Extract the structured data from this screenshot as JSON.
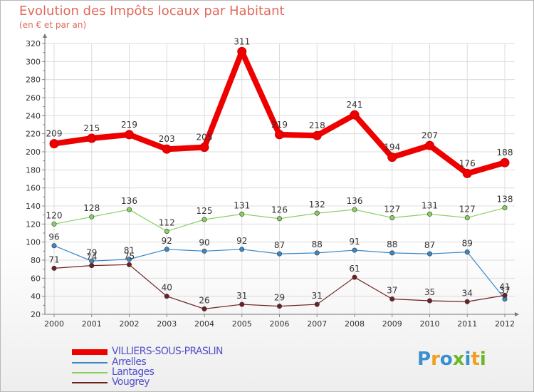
{
  "title": "Evolution des Impôts locaux par Habitant",
  "subtitle": "(en € et par an)",
  "logo": {
    "letters": [
      "P",
      "r",
      "o",
      "x",
      "i",
      "t",
      "i"
    ],
    "colors": [
      "#3a8fd0",
      "#f0a020",
      "#3a8fd0",
      "#6ab82a",
      "#3a8fd0",
      "#f0a020",
      "#6ab82a"
    ]
  },
  "chart_data": {
    "type": "line",
    "title": "Evolution des Impôts locaux par Habitant",
    "ylabel": "(en € et par an)",
    "x": [
      "2000",
      "2001",
      "2002",
      "2003",
      "2004",
      "2005",
      "2006",
      "2007",
      "2008",
      "2009",
      "2010",
      "2011",
      "2012"
    ],
    "ylim": [
      20,
      320
    ],
    "yticks": [
      20,
      40,
      60,
      80,
      100,
      120,
      140,
      160,
      180,
      200,
      220,
      240,
      260,
      280,
      300,
      320
    ],
    "grid": true,
    "series": [
      {
        "name": "VILLIERS-SOUS-PRASLIN",
        "color": "#ee0000",
        "values": [
          209,
          215,
          219,
          203,
          205,
          311,
          219,
          218,
          241,
          194,
          207,
          176,
          188
        ],
        "labels": [
          "209",
          "215",
          "219",
          "203",
          "205",
          "311",
          "219",
          "218",
          "241",
          "194",
          "207",
          "176",
          "188"
        ]
      },
      {
        "name": "Arrelles",
        "color": "#3b88c8",
        "values": [
          96,
          79,
          81,
          92,
          90,
          92,
          87,
          88,
          91,
          88,
          87,
          89,
          37
        ],
        "labels": [
          "96",
          "79",
          "81",
          "92",
          "90",
          "92",
          "87",
          "88",
          "91",
          "88",
          "87",
          "89",
          "37"
        ]
      },
      {
        "name": "Lantages",
        "color": "#88d060",
        "values": [
          120,
          128,
          136,
          112,
          125,
          131,
          126,
          132,
          136,
          127,
          131,
          127,
          138
        ],
        "labels": [
          "120",
          "128",
          "136",
          "112",
          "125",
          "131",
          "126",
          "132",
          "136",
          "127",
          "131",
          "127",
          "138"
        ]
      },
      {
        "name": "Vougrey",
        "color": "#702020",
        "values": [
          71,
          74,
          75,
          40,
          26,
          31,
          29,
          31,
          61,
          37,
          35,
          34,
          41
        ],
        "labels": [
          "71",
          "74",
          "75",
          "40",
          "26",
          "31",
          "29",
          "31",
          "61",
          "37",
          "35",
          "34",
          "41"
        ]
      }
    ]
  }
}
